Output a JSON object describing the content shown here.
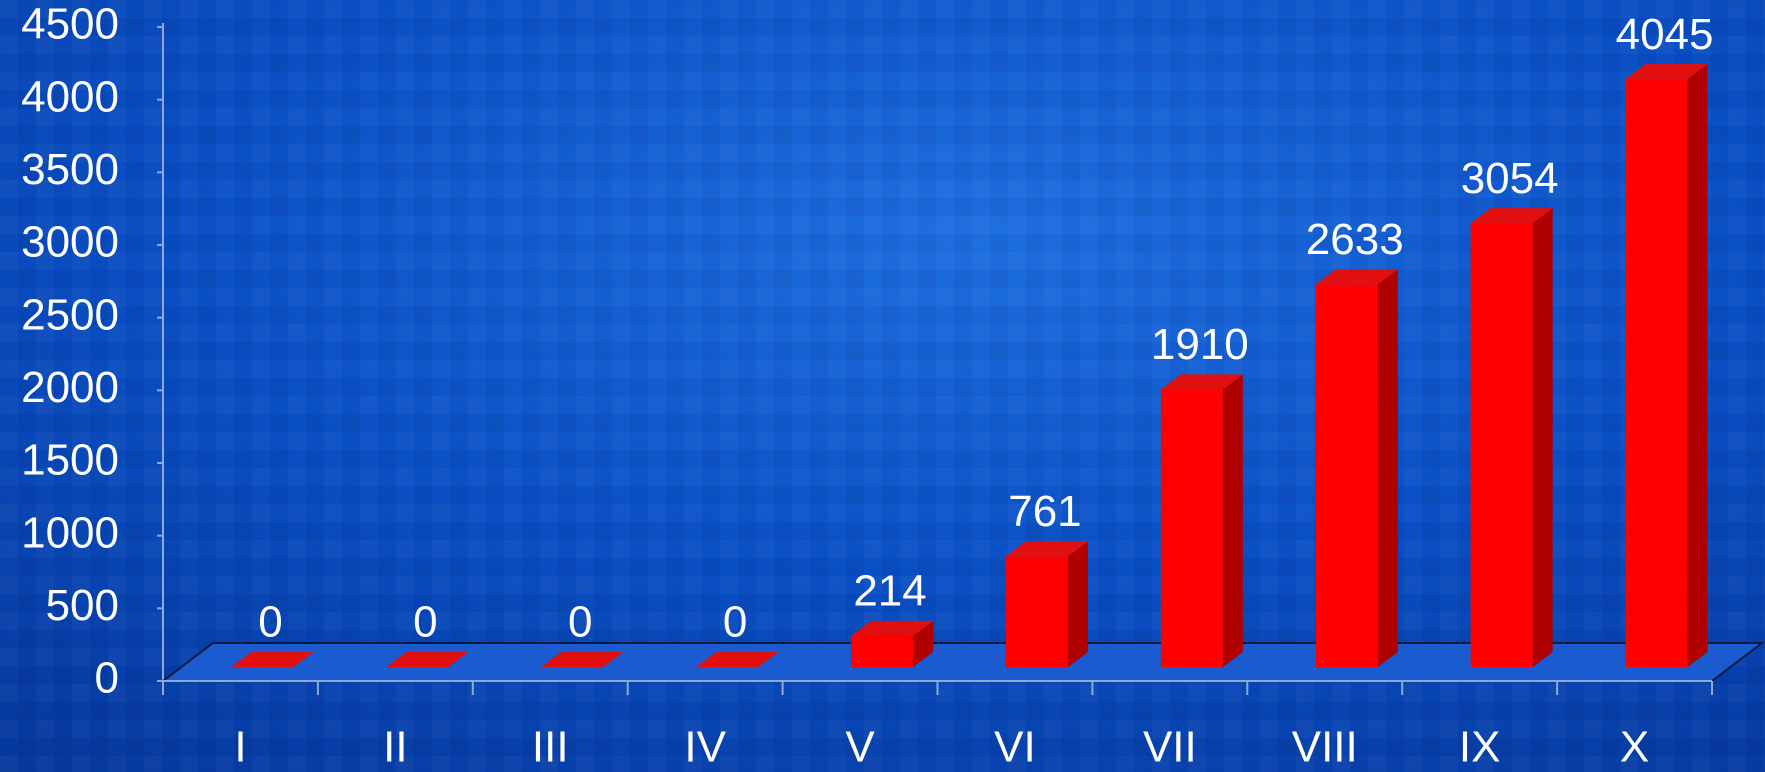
{
  "chart_data": {
    "type": "bar3d",
    "categories": [
      "I",
      "II",
      "III",
      "IV",
      "V",
      "VI",
      "VII",
      "VIII",
      "IX",
      "X"
    ],
    "values": [
      0,
      0,
      0,
      0,
      214,
      761,
      1910,
      2633,
      3054,
      4045
    ],
    "color": "#ff0000",
    "ylim": [
      0,
      4500
    ],
    "yticks": [
      0,
      500,
      1000,
      1500,
      2000,
      2500,
      3000,
      3500,
      4000,
      4500
    ]
  }
}
